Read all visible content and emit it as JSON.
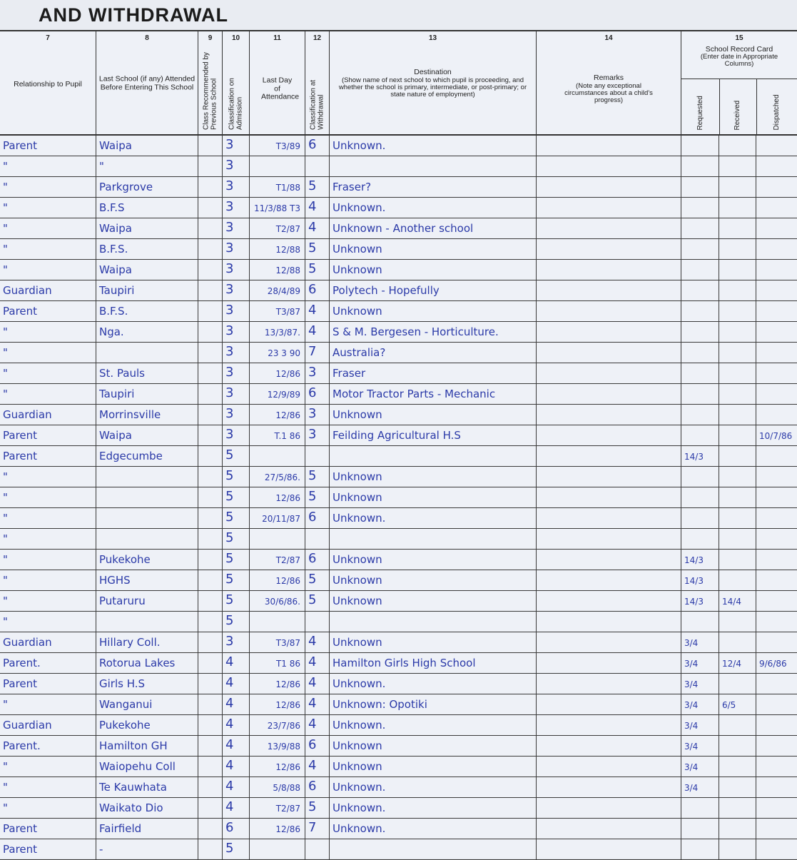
{
  "title": "AND WITHDRAWAL",
  "columns": {
    "c7": {
      "num": "7",
      "label": "Relationship to Pupil"
    },
    "c8": {
      "num": "8",
      "label": "Last School (if any) Attended Before Entering This School"
    },
    "c9": {
      "num": "9",
      "label": "Class Recommended by Previous School"
    },
    "c10": {
      "num": "10",
      "label": "Classification on Admission"
    },
    "c11": {
      "num": "11",
      "label": "Last Day of Attendance"
    },
    "c12": {
      "num": "12",
      "label": "Classification at Withdrawal"
    },
    "c13": {
      "num": "13",
      "label": "Destination",
      "sub": "(Show name of next school to which pupil is proceeding, and whether the school is primary, intermediate, or post-primary; or state nature of employment)"
    },
    "c14": {
      "num": "14",
      "label": "Remarks",
      "sub": "(Note any exceptional circumstances about a child's progress)"
    },
    "c15": {
      "num": "15",
      "label": "School Record Card",
      "sub": "(Enter date in Appropriate Columns)",
      "requested": "Requested",
      "received": "Received",
      "dispatched": "Dispatched"
    }
  },
  "ink_color": "#2b3aa8",
  "rows": [
    {
      "rel": "Parent",
      "last": "Waipa",
      "adm": "3",
      "day": "T3/89",
      "wd": "6",
      "dest": "Unknown.",
      "req": "",
      "rec": "",
      "dis": ""
    },
    {
      "rel": "\"",
      "last": "\"",
      "adm": "3",
      "day": "",
      "wd": "",
      "dest": "",
      "req": "",
      "rec": "",
      "dis": ""
    },
    {
      "rel": "\"",
      "last": "Parkgrove",
      "adm": "3",
      "day": "T1/88",
      "wd": "5",
      "dest": "Fraser?",
      "req": "",
      "rec": "",
      "dis": ""
    },
    {
      "rel": "\"",
      "last": "B.F.S",
      "adm": "3",
      "day": "11/3/88 T3",
      "wd": "4",
      "dest": "Unknown.",
      "req": "",
      "rec": "",
      "dis": ""
    },
    {
      "rel": "\"",
      "last": "Waipa",
      "adm": "3",
      "day": "T2/87",
      "wd": "4",
      "dest": "Unknown - Another school",
      "req": "",
      "rec": "",
      "dis": ""
    },
    {
      "rel": "\"",
      "last": "B.F.S.",
      "adm": "3",
      "day": "12/88",
      "wd": "5",
      "dest": "Unknown",
      "req": "",
      "rec": "",
      "dis": ""
    },
    {
      "rel": "\"",
      "last": "Waipa",
      "adm": "3",
      "day": "12/88",
      "wd": "5",
      "dest": "Unknown",
      "req": "",
      "rec": "",
      "dis": ""
    },
    {
      "rel": "Guardian",
      "last": "Taupiri",
      "adm": "3",
      "day": "28/4/89",
      "wd": "6",
      "dest": "Polytech - Hopefully",
      "req": "",
      "rec": "",
      "dis": ""
    },
    {
      "rel": "Parent",
      "last": "B.F.S.",
      "adm": "3",
      "day": "T3/87",
      "wd": "4",
      "dest": "Unknown",
      "req": "",
      "rec": "",
      "dis": ""
    },
    {
      "rel": "\"",
      "last": "Nga.",
      "adm": "3",
      "day": "13/3/87.",
      "wd": "4",
      "dest": "S & M. Bergesen - Horticulture.",
      "req": "",
      "rec": "",
      "dis": ""
    },
    {
      "rel": "\"",
      "last": "",
      "adm": "3",
      "day": "23 3 90",
      "wd": "7",
      "dest": "Australia?",
      "req": "",
      "rec": "",
      "dis": ""
    },
    {
      "rel": "\"",
      "last": "St. Pauls",
      "adm": "3",
      "day": "12/86",
      "wd": "3",
      "dest": "Fraser",
      "req": "",
      "rec": "",
      "dis": ""
    },
    {
      "rel": "\"",
      "last": "Taupiri",
      "adm": "3",
      "day": "12/9/89",
      "wd": "6",
      "dest": "Motor Tractor Parts - Mechanic",
      "req": "",
      "rec": "",
      "dis": ""
    },
    {
      "rel": "Guardian",
      "last": "Morrinsville",
      "adm": "3",
      "day": "12/86",
      "wd": "3",
      "dest": "Unknown",
      "req": "",
      "rec": "",
      "dis": ""
    },
    {
      "rel": "Parent",
      "last": "Waipa",
      "adm": "3",
      "day": "T.1 86",
      "wd": "3",
      "dest": "Feilding Agricultural H.S",
      "req": "",
      "rec": "",
      "dis": "10/7/86"
    },
    {
      "rel": "Parent",
      "last": "Edgecumbe",
      "adm": "5",
      "day": "",
      "wd": "",
      "dest": "",
      "req": "14/3",
      "rec": "",
      "dis": ""
    },
    {
      "rel": "\"",
      "last": "",
      "adm": "5",
      "day": "27/5/86.",
      "wd": "5",
      "dest": "Unknown",
      "req": "",
      "rec": "",
      "dis": ""
    },
    {
      "rel": "\"",
      "last": "",
      "adm": "5",
      "day": "12/86",
      "wd": "5",
      "dest": "Unknown",
      "req": "",
      "rec": "",
      "dis": ""
    },
    {
      "rel": "\"",
      "last": "",
      "adm": "5",
      "day": "20/11/87",
      "wd": "6",
      "dest": "Unknown.",
      "req": "",
      "rec": "",
      "dis": ""
    },
    {
      "rel": "\"",
      "last": "",
      "adm": "5",
      "day": "",
      "wd": "",
      "dest": "",
      "req": "",
      "rec": "",
      "dis": ""
    },
    {
      "rel": "\"",
      "last": "Pukekohe",
      "adm": "5",
      "day": "T2/87",
      "wd": "6",
      "dest": "Unknown",
      "req": "14/3",
      "rec": "",
      "dis": ""
    },
    {
      "rel": "\"",
      "last": "HGHS",
      "adm": "5",
      "day": "12/86",
      "wd": "5",
      "dest": "Unknown",
      "req": "14/3",
      "rec": "",
      "dis": ""
    },
    {
      "rel": "\"",
      "last": "Putaruru",
      "adm": "5",
      "day": "30/6/86.",
      "wd": "5",
      "dest": "Unknown",
      "req": "14/3",
      "rec": "14/4",
      "dis": ""
    },
    {
      "rel": "\"",
      "last": "",
      "adm": "5",
      "day": "",
      "wd": "",
      "dest": "",
      "req": "",
      "rec": "",
      "dis": ""
    },
    {
      "rel": "Guardian",
      "last": "Hillary Coll.",
      "adm": "3",
      "day": "T3/87",
      "wd": "4",
      "dest": "Unknown",
      "req": "3/4",
      "rec": "",
      "dis": ""
    },
    {
      "rel": "Parent.",
      "last": "Rotorua Lakes",
      "adm": "4",
      "day": "T1 86",
      "wd": "4",
      "dest": "Hamilton Girls High School",
      "req": "3/4",
      "rec": "12/4",
      "dis": "9/6/86"
    },
    {
      "rel": "Parent",
      "last": "Girls H.S",
      "adm": "4",
      "day": "12/86",
      "wd": "4",
      "dest": "Unknown.",
      "req": "3/4",
      "rec": "",
      "dis": ""
    },
    {
      "rel": "\"",
      "last": "Wanganui",
      "adm": "4",
      "day": "12/86",
      "wd": "4",
      "dest": "Unknown: Opotiki",
      "req": "3/4",
      "rec": "6/5",
      "dis": ""
    },
    {
      "rel": "Guardian",
      "last": "Pukekohe",
      "adm": "4",
      "day": "23/7/86",
      "wd": "4",
      "dest": "Unknown.",
      "req": "3/4",
      "rec": "",
      "dis": ""
    },
    {
      "rel": "Parent.",
      "last": "Hamilton GH",
      "adm": "4",
      "day": "13/9/88",
      "wd": "6",
      "dest": "Unknown",
      "req": "3/4",
      "rec": "",
      "dis": ""
    },
    {
      "rel": "\"",
      "last": "Waiopehu Coll",
      "adm": "4",
      "day": "12/86",
      "wd": "4",
      "dest": "Unknown",
      "req": "3/4",
      "rec": "",
      "dis": ""
    },
    {
      "rel": "\"",
      "last": "Te Kauwhata",
      "adm": "4",
      "day": "5/8/88",
      "wd": "6",
      "dest": "Unknown.",
      "req": "3/4",
      "rec": "",
      "dis": ""
    },
    {
      "rel": "\"",
      "last": "Waikato Dio",
      "adm": "4",
      "day": "T2/87",
      "wd": "5",
      "dest": "Unknown.",
      "req": "",
      "rec": "",
      "dis": ""
    },
    {
      "rel": "Parent",
      "last": "Fairfield",
      "adm": "6",
      "day": "12/86",
      "wd": "7",
      "dest": "Unknown.",
      "req": "",
      "rec": "",
      "dis": ""
    },
    {
      "rel": "Parent",
      "last": "-",
      "adm": "5",
      "day": "",
      "wd": "",
      "dest": "",
      "req": "",
      "rec": "",
      "dis": ""
    }
  ]
}
